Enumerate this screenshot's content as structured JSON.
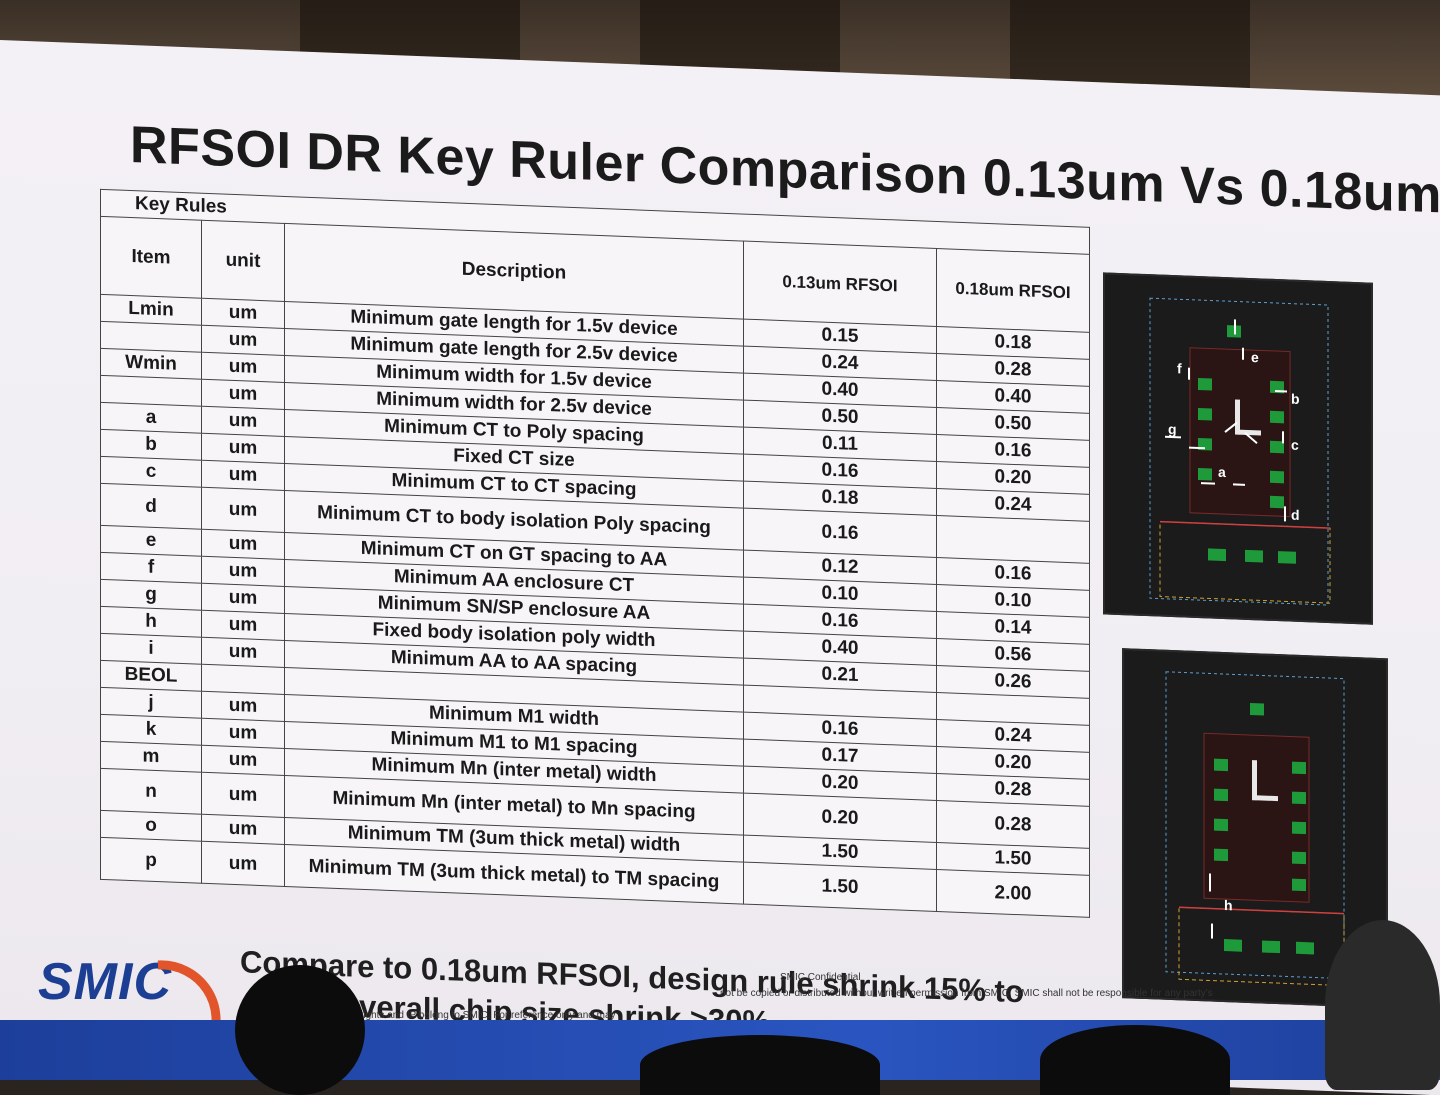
{
  "slide": {
    "title": "RFSOI DR Key Ruler Comparison 0.13um Vs 0.18um"
  },
  "table": {
    "section_label": "Key Rules",
    "headers": {
      "item": "Item",
      "unit": "unit",
      "description": "Description",
      "v013": "0.13um RFSOI",
      "v018": "0.18um RFSOI"
    },
    "rows": [
      {
        "item": "Lmin",
        "unit": "um",
        "desc": "Minimum gate length for 1.5v device",
        "v013": "0.15",
        "v018": "0.18"
      },
      {
        "item": "",
        "unit": "um",
        "desc": "Minimum gate length for 2.5v device",
        "v013": "0.24",
        "v018": "0.28"
      },
      {
        "item": "Wmin",
        "unit": "um",
        "desc": "Minimum width for 1.5v device",
        "v013": "0.40",
        "v018": "0.40"
      },
      {
        "item": "",
        "unit": "um",
        "desc": "Minimum width for 2.5v device",
        "v013": "0.50",
        "v018": "0.50"
      },
      {
        "item": "a",
        "unit": "um",
        "desc": "Minimum CT to Poly spacing",
        "v013": "0.11",
        "v018": "0.16"
      },
      {
        "item": "b",
        "unit": "um",
        "desc": "Fixed CT size",
        "v013": "0.16",
        "v018": "0.20"
      },
      {
        "item": "c",
        "unit": "um",
        "desc": "Minimum CT to CT spacing",
        "v013": "0.18",
        "v018": "0.24"
      },
      {
        "item": "d",
        "unit": "um",
        "desc": "Minimum CT to body isolation Poly spacing",
        "v013": "0.16",
        "v018": ""
      },
      {
        "item": "e",
        "unit": "um",
        "desc": "Minimum CT on GT spacing to AA",
        "v013": "0.12",
        "v018": "0.16"
      },
      {
        "item": "f",
        "unit": "um",
        "desc": "Minimum AA enclosure CT",
        "v013": "0.10",
        "v018": "0.10"
      },
      {
        "item": "g",
        "unit": "um",
        "desc": "Minimum SN/SP enclosure AA",
        "v013": "0.16",
        "v018": "0.14"
      },
      {
        "item": "h",
        "unit": "um",
        "desc": "Fixed body isolation poly width",
        "v013": "0.40",
        "v018": "0.56"
      },
      {
        "item": "i",
        "unit": "um",
        "desc": "Minimum AA to AA spacing",
        "v013": "0.21",
        "v018": "0.26"
      },
      {
        "item": "BEOL",
        "unit": "",
        "desc": "",
        "v013": "",
        "v018": ""
      },
      {
        "item": "j",
        "unit": "um",
        "desc": "Minimum M1 width",
        "v013": "0.16",
        "v018": "0.24"
      },
      {
        "item": "k",
        "unit": "um",
        "desc": "Minimum M1 to M1 spacing",
        "v013": "0.17",
        "v018": "0.20"
      },
      {
        "item": "m",
        "unit": "um",
        "desc": "Minimum Mn (inter metal) width",
        "v013": "0.20",
        "v018": "0.28"
      },
      {
        "item": "n",
        "unit": "um",
        "desc": "Minimum Mn (inter metal) to Mn spacing",
        "v013": "0.20",
        "v018": "0.28"
      },
      {
        "item": "o",
        "unit": "um",
        "desc": "Minimum TM (3um thick metal) width",
        "v013": "1.50",
        "v018": "1.50"
      },
      {
        "item": "p",
        "unit": "um",
        "desc": "Minimum TM (3um thick metal) to TM spacing",
        "v013": "1.50",
        "v018": "2.00"
      }
    ]
  },
  "diagram_top": {
    "labels": [
      "f",
      "e",
      "b",
      "g",
      "c",
      "a",
      "d"
    ]
  },
  "diagram_bottom": {
    "labels": [
      "h"
    ]
  },
  "summary": {
    "line1": "Compare to 0.18um RFSOI, design rule shrink 15% to",
    "line2": "Overall chip size shrink >30%"
  },
  "footer": {
    "logo": "SMIC",
    "confidential": "SMIC Confidential",
    "notice1": "not be copied or distributed without written permission from SMIC. SMIC shall not be responsible for any party's",
    "notice2": "rights and IP belong to SMIC. For reference only and may"
  },
  "colors": {
    "slide_bg": "#f2eff4",
    "title": "#1b1b1b",
    "logo_blue": "#1c3f94",
    "logo_orange": "#e2552a",
    "diagram_green": "#1f9a3a",
    "diagram_bg": "#1b1b1b"
  }
}
